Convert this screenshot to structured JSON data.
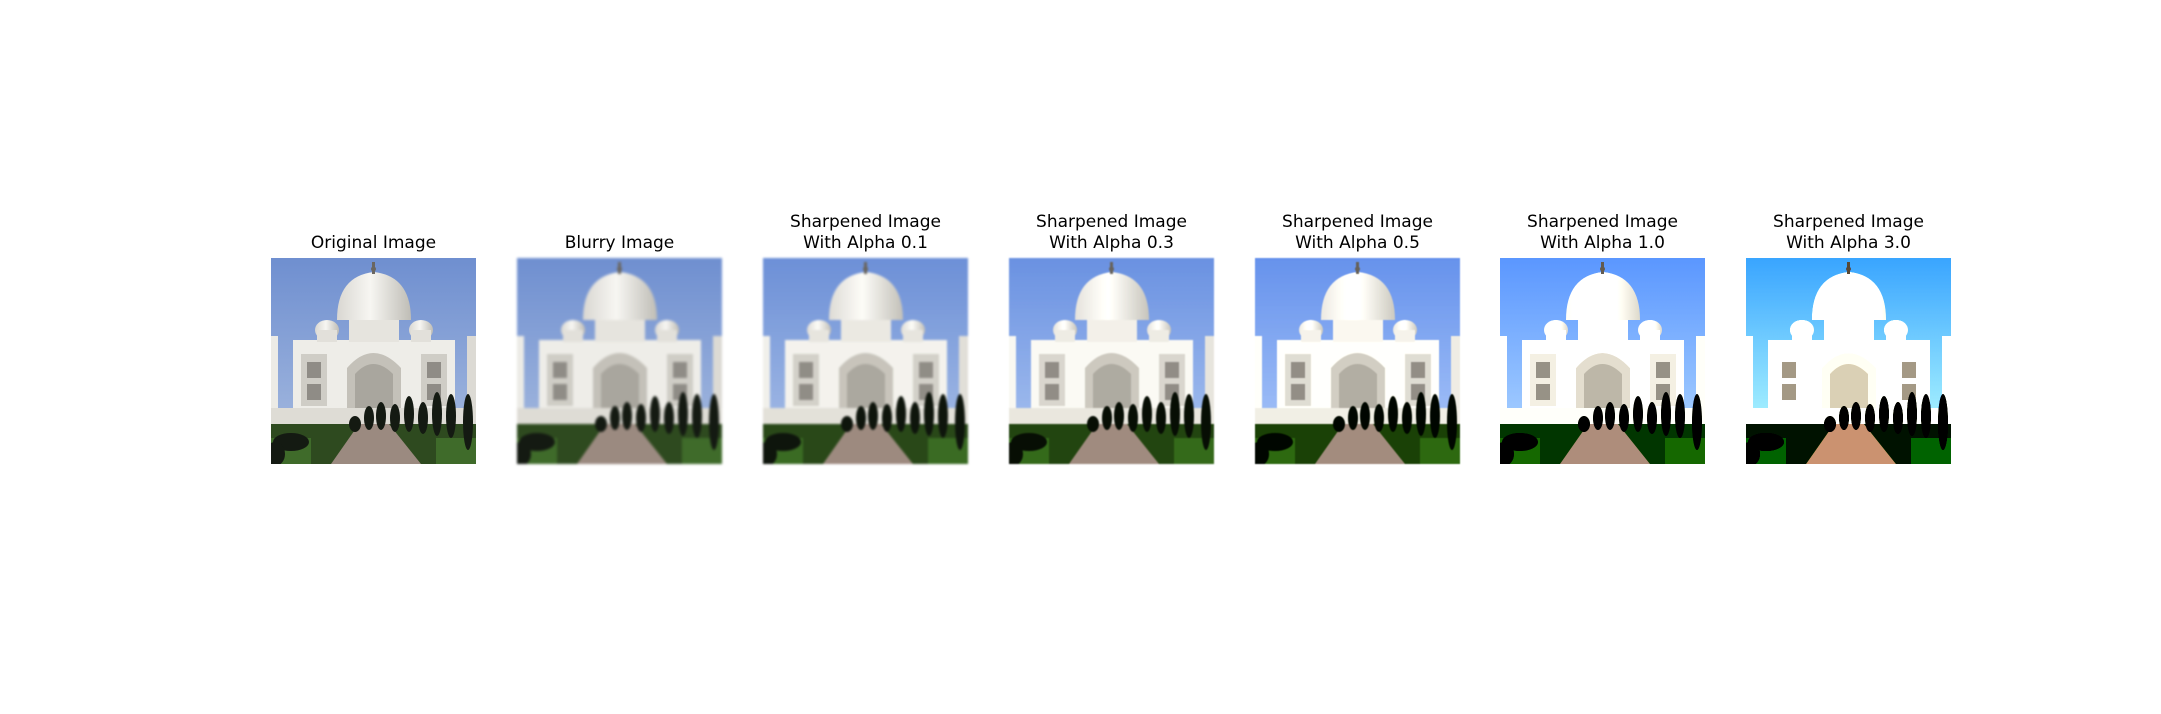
{
  "panels": [
    {
      "title": "Original Image",
      "blur": 0,
      "contrast": 1.0,
      "saturate": 1.0
    },
    {
      "title": "Blurry Image",
      "blur": 1.2,
      "contrast": 1.0,
      "saturate": 1.0
    },
    {
      "title": "Sharpened Image\n With Alpha 0.1",
      "blur": 1.0,
      "contrast": 1.05,
      "saturate": 1.05
    },
    {
      "title": "Sharpened Image\n With Alpha 0.3",
      "blur": 0.7,
      "contrast": 1.12,
      "saturate": 1.1
    },
    {
      "title": "Sharpened Image\n With Alpha 0.5",
      "blur": 0.4,
      "contrast": 1.2,
      "saturate": 1.15
    },
    {
      "title": "Sharpened Image\n With Alpha 1.0",
      "blur": 0,
      "contrast": 1.45,
      "saturate": 1.3
    },
    {
      "title": "Sharpened Image\n With Alpha 3.0",
      "blur": 0,
      "contrast": 2.1,
      "saturate": 1.6
    }
  ]
}
